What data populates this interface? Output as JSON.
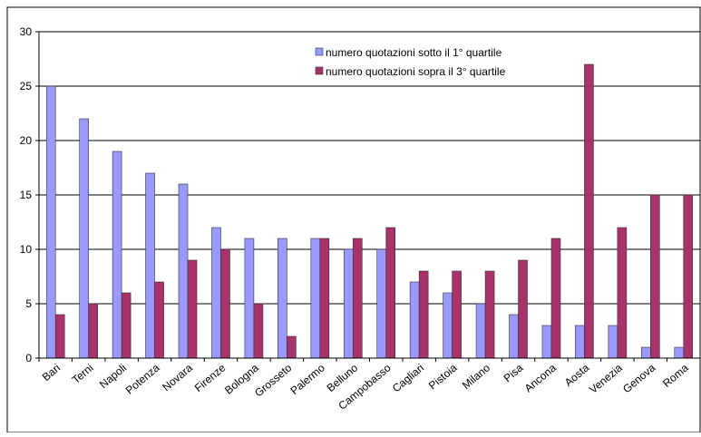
{
  "chart_data": {
    "type": "bar",
    "categories": [
      "Bari",
      "Terni",
      "Napoli",
      "Potenza",
      "Novara",
      "Firenze",
      "Bologna",
      "Grosseto",
      "Palermo",
      "Belluno",
      "Campobasso",
      "Cagliari",
      "Pistoia",
      "Milano",
      "Pisa",
      "Ancona",
      "Aosta",
      "Venezia",
      "Genova",
      "Roma"
    ],
    "series": [
      {
        "name": "numero quotazioni sotto il 1° quartile",
        "color": "#9999ff",
        "values": [
          25,
          22,
          19,
          17,
          16,
          12,
          11,
          11,
          11,
          10,
          10,
          7,
          6,
          5,
          4,
          3,
          3,
          3,
          1,
          1
        ]
      },
      {
        "name": "numero quotazioni sopra il 3° quartile",
        "color": "#a8336a",
        "values": [
          4,
          5,
          6,
          7,
          9,
          10,
          5,
          2,
          11,
          11,
          12,
          8,
          8,
          8,
          9,
          11,
          27,
          12,
          15,
          15
        ]
      }
    ],
    "ylim": [
      0,
      30
    ],
    "yticks": [
      0,
      5,
      10,
      15,
      20,
      25,
      30
    ],
    "grid": true,
    "legend": "top-center"
  }
}
